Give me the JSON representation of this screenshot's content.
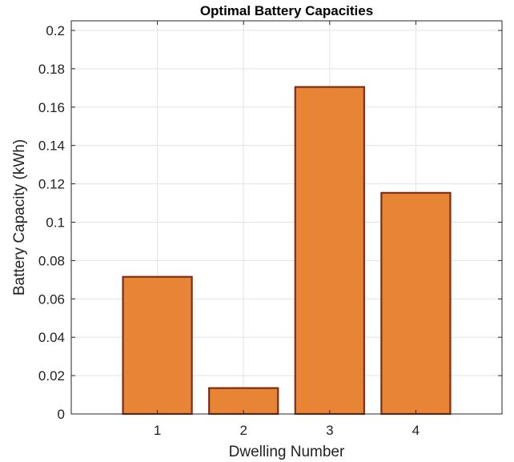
{
  "chart_data": {
    "type": "bar",
    "title": "Optimal Battery Capacities",
    "xlabel": "Dwelling Number",
    "ylabel": "Battery Capacity (kWh)",
    "categories": [
      "1",
      "2",
      "3",
      "4"
    ],
    "values": [
      0.0715,
      0.0135,
      0.1705,
      0.1153
    ],
    "xlim": [
      0,
      5
    ],
    "ylim": [
      0,
      0.205
    ],
    "yticks": [
      0,
      0.02,
      0.04,
      0.06,
      0.08,
      0.1,
      0.12,
      0.14,
      0.16,
      0.18,
      0.2
    ],
    "ytick_labels": [
      "0",
      "0.02",
      "0.04",
      "0.06",
      "0.08",
      "0.1",
      "0.12",
      "0.14",
      "0.16",
      "0.18",
      "0.2"
    ],
    "grid": true,
    "legend": "none",
    "colors": {
      "bar_fill": "#E88436",
      "bar_edge": "#7F2D12",
      "grid": "#E3E3E3",
      "axis": "#262626",
      "text": "#222222",
      "title": "#000000"
    }
  }
}
